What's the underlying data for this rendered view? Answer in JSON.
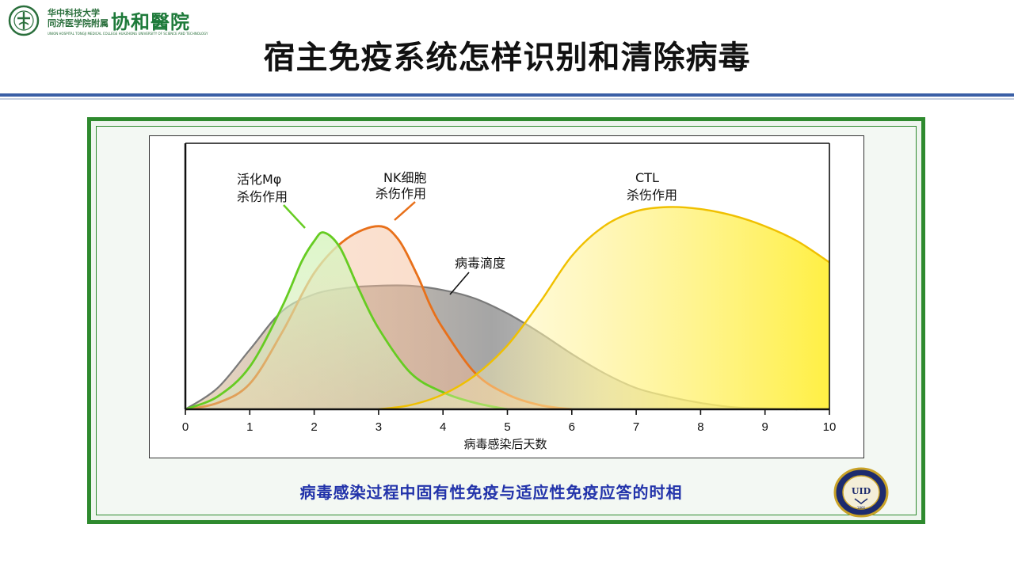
{
  "header": {
    "university_line1": "华中科技大学",
    "university_line2": "同济医学院附属",
    "hospital_name": "协和醫院",
    "hospital_english": "UNION HOSPITAL TONGJI MEDICAL COLLEGE HUAZHONG UNIVERSITY OF SCIENCE AND TECHNOLOGY",
    "title": "宿主免疫系统怎样识别和清除病毒"
  },
  "colors": {
    "accent_blue": "#3a5fa6",
    "frame_green": "#2e8a2e",
    "caption_blue": "#2233aa"
  },
  "chart_data": {
    "type": "area",
    "title": "",
    "xlabel": "病毒感染后天数",
    "ylabel": "",
    "xlim": [
      0,
      10
    ],
    "ylim": [
      0,
      1
    ],
    "x_ticks": [
      "0",
      "1",
      "2",
      "3",
      "4",
      "5",
      "6",
      "7",
      "8",
      "9",
      "10"
    ],
    "grid": false,
    "series": [
      {
        "name": "病毒滴度",
        "color": "#7a7a7a",
        "x": [
          0,
          0.5,
          1,
          1.5,
          2,
          2.5,
          3,
          3.5,
          4,
          4.5,
          5,
          5.5,
          6,
          6.5,
          7,
          7.5,
          8,
          8.5,
          9,
          9.5
        ],
        "y": [
          0,
          0.1,
          0.28,
          0.46,
          0.54,
          0.57,
          0.58,
          0.58,
          0.56,
          0.52,
          0.45,
          0.36,
          0.26,
          0.17,
          0.1,
          0.06,
          0.03,
          0.01,
          0.005,
          0
        ]
      },
      {
        "name": "NK细胞 杀伤作用",
        "color": "#e8701a",
        "x": [
          0,
          0.5,
          1,
          1.5,
          2,
          2.5,
          3,
          3.3,
          3.6,
          3.8,
          4,
          4.5,
          5,
          5.5,
          6
        ],
        "y": [
          0,
          0.03,
          0.12,
          0.36,
          0.64,
          0.8,
          0.86,
          0.8,
          0.63,
          0.49,
          0.38,
          0.17,
          0.07,
          0.02,
          0
        ]
      },
      {
        "name": "活化Mφ 杀伤作用",
        "color": "#66cc22",
        "x": [
          0,
          0.5,
          1,
          1.5,
          1.8,
          2,
          2.15,
          2.4,
          2.7,
          3,
          3.5,
          4,
          4.5,
          5
        ],
        "y": [
          0,
          0.06,
          0.2,
          0.48,
          0.69,
          0.79,
          0.83,
          0.76,
          0.56,
          0.38,
          0.17,
          0.08,
          0.03,
          0
        ]
      },
      {
        "name": "CTL 杀伤作用",
        "color": "#f0c000",
        "x": [
          3,
          3.5,
          4,
          4.5,
          5,
          5.5,
          6,
          6.5,
          7,
          7.5,
          8,
          8.5,
          9,
          9.5,
          10
        ],
        "y": [
          0,
          0.02,
          0.07,
          0.16,
          0.3,
          0.5,
          0.72,
          0.86,
          0.93,
          0.95,
          0.94,
          0.91,
          0.86,
          0.79,
          0.69
        ]
      }
    ],
    "annotations": [
      {
        "lines": [
          "活化Mφ",
          "杀伤作用"
        ]
      },
      {
        "lines": [
          "NK细胞",
          "杀伤作用"
        ]
      },
      {
        "lines": [
          "CTL",
          "杀伤作用"
        ]
      },
      {
        "lines": [
          "病毒滴度"
        ]
      }
    ]
  },
  "caption": "病毒感染过程中固有性免疫与适应性免疫应答的时相",
  "seal_text": "WUHAN UNION HOSPITAL · TONGJI · HUST"
}
